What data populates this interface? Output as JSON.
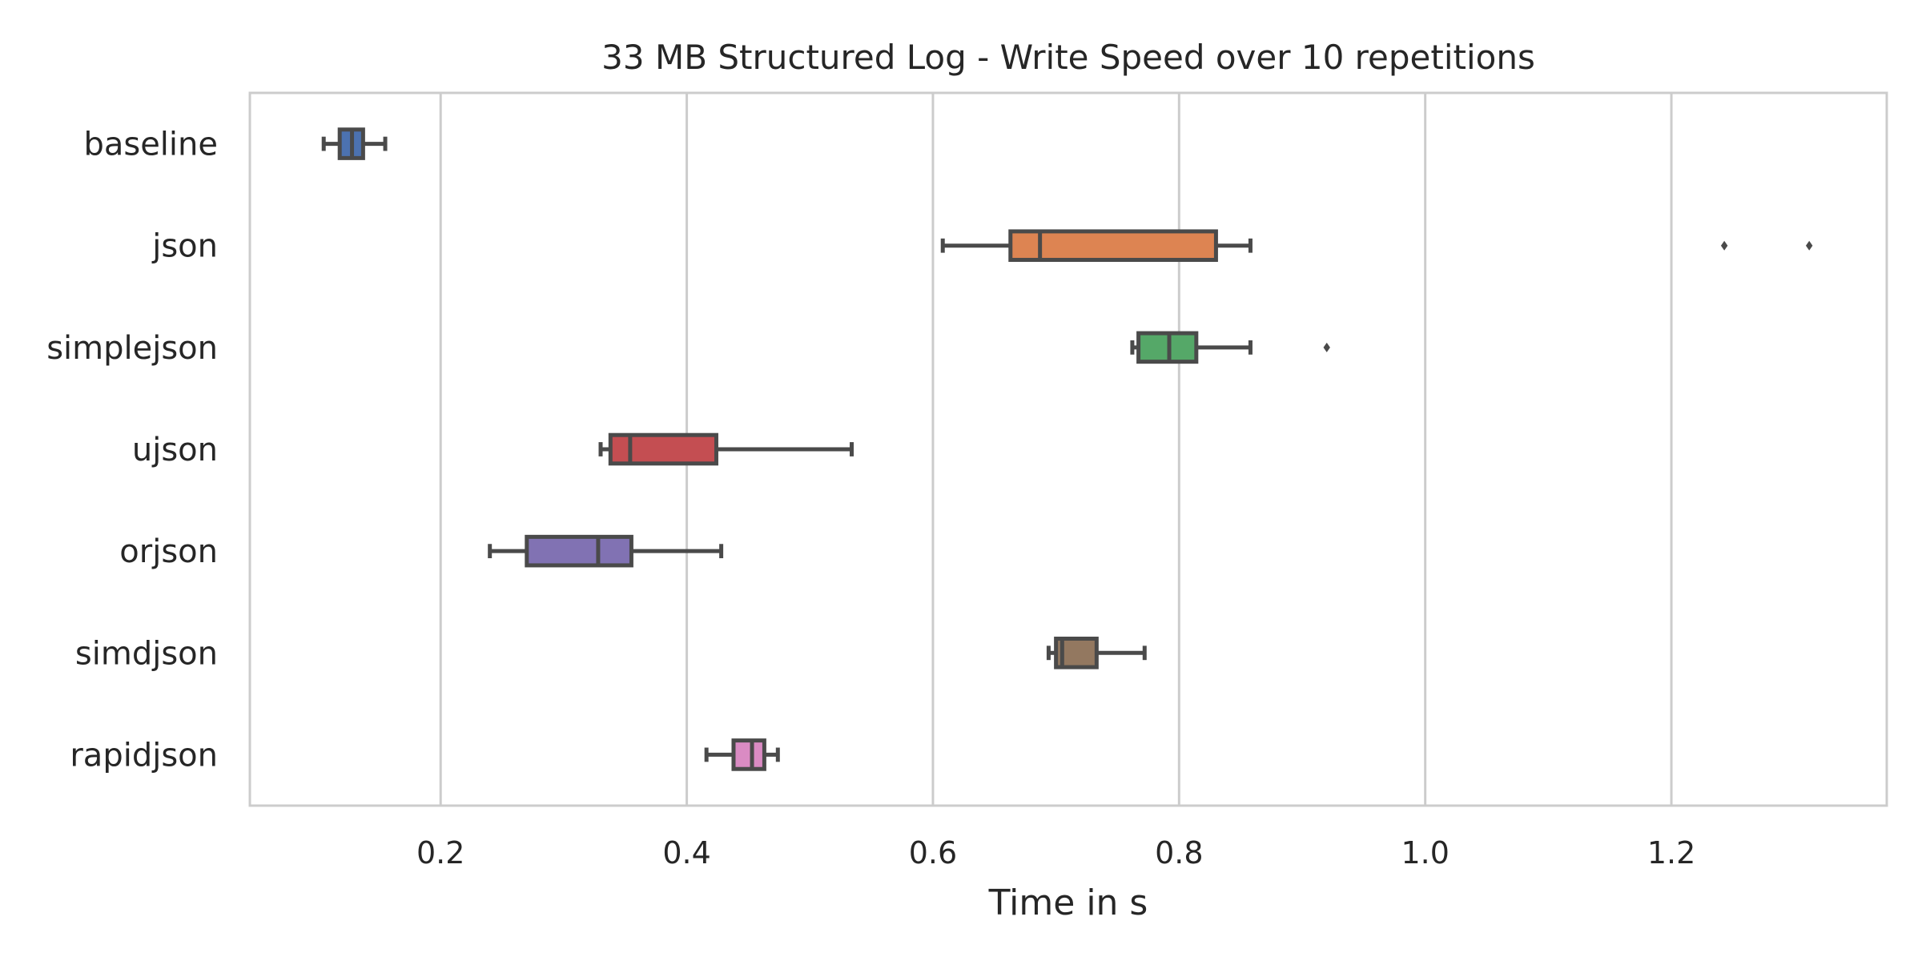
{
  "chart_data": {
    "type": "boxplot",
    "orientation": "horizontal",
    "title": "33 MB Structured Log - Write Speed over 10 repetitions",
    "xlabel": "Time in s",
    "ylabel": "",
    "xlim": [
      0.045,
      1.375
    ],
    "x_ticks": [
      0.2,
      0.4,
      0.6,
      0.8,
      1.0,
      1.2
    ],
    "x_tick_labels": [
      "0.2",
      "0.4",
      "0.6",
      "0.8",
      "1.0",
      "1.2"
    ],
    "grid": "vertical",
    "legend": "none",
    "categories": [
      "baseline",
      "json",
      "simplejson",
      "ujson",
      "orjson",
      "simdjson",
      "rapidjson"
    ],
    "boxes": [
      {
        "category": "baseline",
        "whisker_low": 0.105,
        "q1": 0.118,
        "median": 0.128,
        "q3": 0.137,
        "whisker_high": 0.155,
        "outliers": [],
        "color": "#4c72b0"
      },
      {
        "category": "json",
        "whisker_low": 0.608,
        "q1": 0.663,
        "median": 0.687,
        "q3": 0.83,
        "whisker_high": 0.858,
        "outliers": [
          1.243,
          1.312
        ],
        "color": "#dd8452"
      },
      {
        "category": "simplejson",
        "whisker_low": 0.762,
        "q1": 0.767,
        "median": 0.792,
        "q3": 0.814,
        "whisker_high": 0.858,
        "outliers": [
          0.92
        ],
        "color": "#55a868"
      },
      {
        "category": "ujson",
        "whisker_low": 0.33,
        "q1": 0.338,
        "median": 0.354,
        "q3": 0.424,
        "whisker_high": 0.534,
        "outliers": [],
        "color": "#c44e52"
      },
      {
        "category": "orjson",
        "whisker_low": 0.24,
        "q1": 0.27,
        "median": 0.328,
        "q3": 0.355,
        "whisker_high": 0.428,
        "outliers": [],
        "color": "#8172b3"
      },
      {
        "category": "simdjson",
        "whisker_low": 0.694,
        "q1": 0.7,
        "median": 0.705,
        "q3": 0.733,
        "whisker_high": 0.772,
        "outliers": [],
        "color": "#937860"
      },
      {
        "category": "rapidjson",
        "whisker_low": 0.416,
        "q1": 0.438,
        "median": 0.453,
        "q3": 0.463,
        "whisker_high": 0.474,
        "outliers": [],
        "color": "#da8bc3"
      }
    ]
  }
}
